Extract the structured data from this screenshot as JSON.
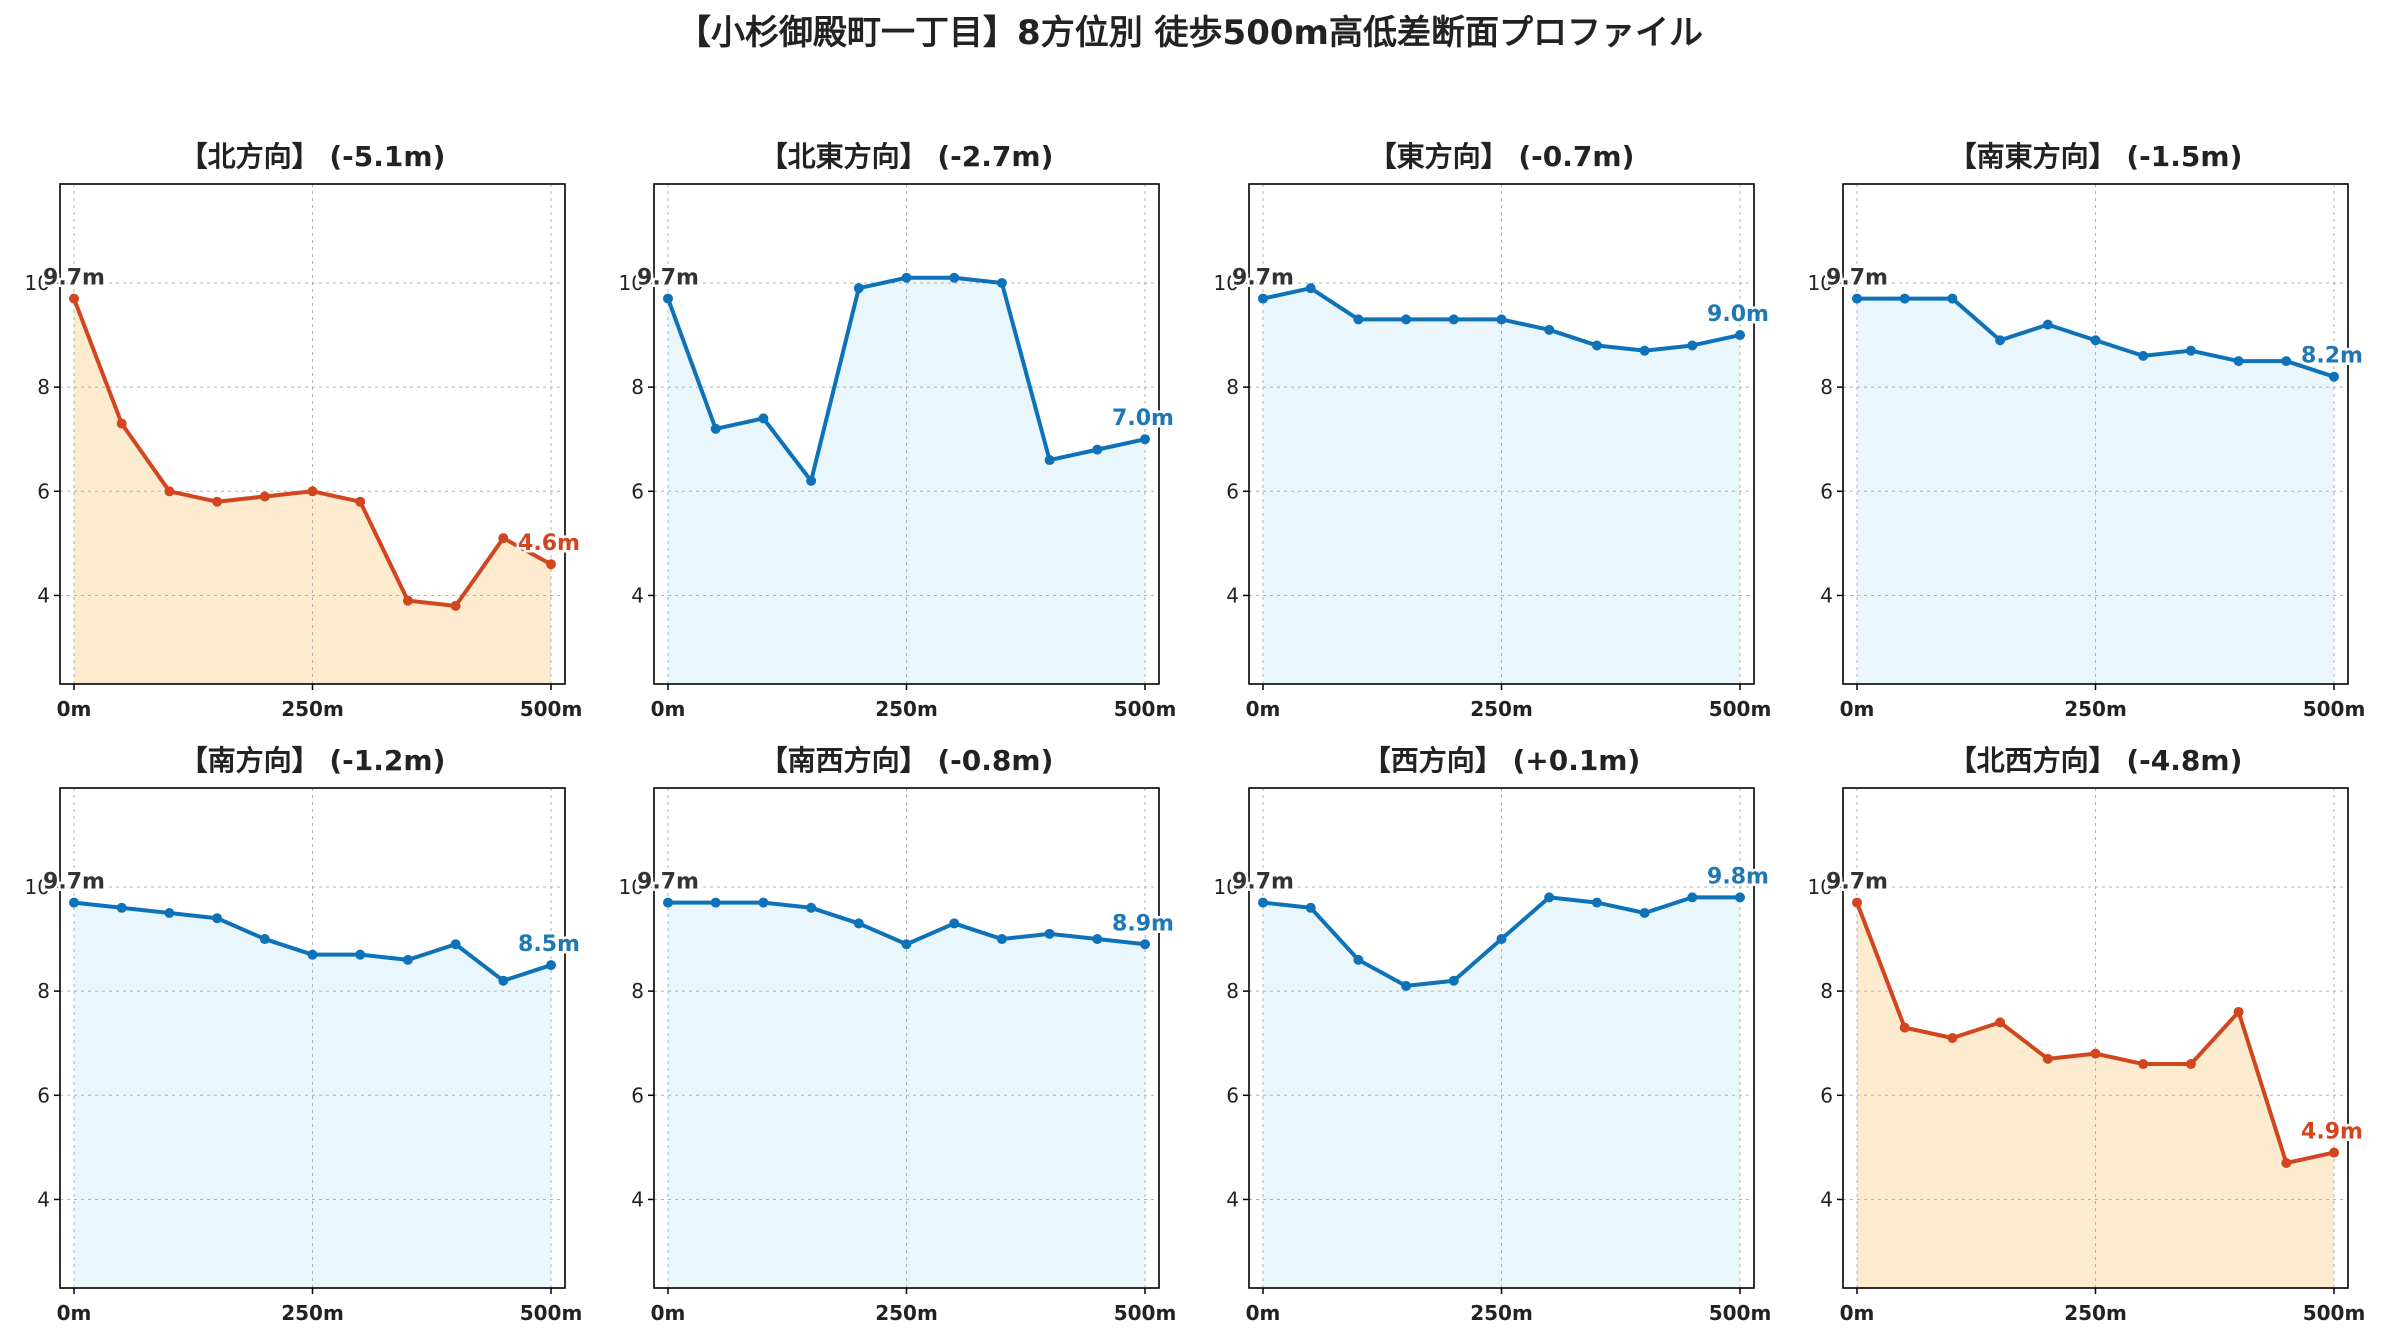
{
  "title": "【小杉御殿町一丁目】8方位別 徒歩500m高低差断面プロファイル",
  "colors": {
    "down": "#d2461f",
    "down_fill": "#fdebd0",
    "up": "#1f77b4",
    "up_line": "#0e72b8",
    "up_fill": "#e9f6fb",
    "start_label": "#333333"
  },
  "chart_data": [
    {
      "type": "area",
      "title": "【北方向】 (-5.1m)",
      "trend": "down",
      "x": [
        0,
        50,
        100,
        150,
        200,
        250,
        300,
        350,
        400,
        450,
        500
      ],
      "y": [
        9.7,
        7.3,
        6.0,
        5.8,
        5.9,
        6.0,
        5.8,
        3.9,
        3.8,
        5.1,
        4.6
      ],
      "start_label": "9.7m",
      "end_label": "4.6m",
      "xticks": [
        "0m",
        "250m",
        "500m"
      ],
      "yticks": [
        "4",
        "6",
        "8",
        "10"
      ],
      "xlim": [
        0,
        500
      ],
      "ylim": [
        2.3,
        11.9
      ],
      "grid": true
    },
    {
      "type": "area",
      "title": "【北東方向】 (-2.7m)",
      "trend": "up",
      "x": [
        0,
        50,
        100,
        150,
        200,
        250,
        300,
        350,
        400,
        450,
        500
      ],
      "y": [
        9.7,
        7.2,
        7.4,
        6.2,
        9.9,
        10.1,
        10.1,
        10.0,
        6.6,
        6.8,
        7.0
      ],
      "start_label": "9.7m",
      "end_label": "7.0m",
      "xticks": [
        "0m",
        "250m",
        "500m"
      ],
      "yticks": [
        "4",
        "6",
        "8",
        "10"
      ],
      "xlim": [
        0,
        500
      ],
      "ylim": [
        2.3,
        11.9
      ],
      "grid": true
    },
    {
      "type": "area",
      "title": "【東方向】 (-0.7m)",
      "trend": "up",
      "x": [
        0,
        50,
        100,
        150,
        200,
        250,
        300,
        350,
        400,
        450,
        500
      ],
      "y": [
        9.7,
        9.9,
        9.3,
        9.3,
        9.3,
        9.3,
        9.1,
        8.8,
        8.7,
        8.8,
        9.0
      ],
      "start_label": "9.7m",
      "end_label": "9.0m",
      "xticks": [
        "0m",
        "250m",
        "500m"
      ],
      "yticks": [
        "4",
        "6",
        "8",
        "10"
      ],
      "xlim": [
        0,
        500
      ],
      "ylim": [
        2.3,
        11.9
      ],
      "grid": true
    },
    {
      "type": "area",
      "title": "【南東方向】 (-1.5m)",
      "trend": "up",
      "x": [
        0,
        50,
        100,
        150,
        200,
        250,
        300,
        350,
        400,
        450,
        500
      ],
      "y": [
        9.7,
        9.7,
        9.7,
        8.9,
        9.2,
        8.9,
        8.6,
        8.7,
        8.5,
        8.5,
        8.2
      ],
      "start_label": "9.7m",
      "end_label": "8.2m",
      "xticks": [
        "0m",
        "250m",
        "500m"
      ],
      "yticks": [
        "4",
        "6",
        "8",
        "10"
      ],
      "xlim": [
        0,
        500
      ],
      "ylim": [
        2.3,
        11.9
      ],
      "grid": true
    },
    {
      "type": "area",
      "title": "【南方向】 (-1.2m)",
      "trend": "up",
      "x": [
        0,
        50,
        100,
        150,
        200,
        250,
        300,
        350,
        400,
        450,
        500
      ],
      "y": [
        9.7,
        9.6,
        9.5,
        9.4,
        9.0,
        8.7,
        8.7,
        8.6,
        8.9,
        8.2,
        8.5
      ],
      "start_label": "9.7m",
      "end_label": "8.5m",
      "xticks": [
        "0m",
        "250m",
        "500m"
      ],
      "yticks": [
        "4",
        "6",
        "8",
        "10"
      ],
      "xlim": [
        0,
        500
      ],
      "ylim": [
        2.3,
        11.9
      ],
      "grid": true
    },
    {
      "type": "area",
      "title": "【南西方向】 (-0.8m)",
      "trend": "up",
      "x": [
        0,
        50,
        100,
        150,
        200,
        250,
        300,
        350,
        400,
        450,
        500
      ],
      "y": [
        9.7,
        9.7,
        9.7,
        9.6,
        9.3,
        8.9,
        9.3,
        9.0,
        9.1,
        9.0,
        8.9
      ],
      "start_label": "9.7m",
      "end_label": "8.9m",
      "xticks": [
        "0m",
        "250m",
        "500m"
      ],
      "yticks": [
        "4",
        "6",
        "8",
        "10"
      ],
      "xlim": [
        0,
        500
      ],
      "ylim": [
        2.3,
        11.9
      ],
      "grid": true
    },
    {
      "type": "area",
      "title": "【西方向】 (+0.1m)",
      "trend": "up",
      "x": [
        0,
        50,
        100,
        150,
        200,
        250,
        300,
        350,
        400,
        450,
        500
      ],
      "y": [
        9.7,
        9.6,
        8.6,
        8.1,
        8.2,
        9.0,
        9.8,
        9.7,
        9.5,
        9.8,
        9.8
      ],
      "start_label": "9.7m",
      "end_label": "9.8m",
      "xticks": [
        "0m",
        "250m",
        "500m"
      ],
      "yticks": [
        "4",
        "6",
        "8",
        "10"
      ],
      "xlim": [
        0,
        500
      ],
      "ylim": [
        2.3,
        11.9
      ],
      "grid": true
    },
    {
      "type": "area",
      "title": "【北西方向】 (-4.8m)",
      "trend": "down",
      "x": [
        0,
        50,
        100,
        150,
        200,
        250,
        300,
        350,
        400,
        450,
        500
      ],
      "y": [
        9.7,
        7.3,
        7.1,
        7.4,
        6.7,
        6.8,
        6.6,
        6.6,
        7.6,
        4.7,
        4.9
      ],
      "start_label": "9.7m",
      "end_label": "4.9m",
      "xticks": [
        "0m",
        "250m",
        "500m"
      ],
      "yticks": [
        "4",
        "6",
        "8",
        "10"
      ],
      "xlim": [
        0,
        500
      ],
      "ylim": [
        2.3,
        11.9
      ],
      "grid": true
    }
  ]
}
